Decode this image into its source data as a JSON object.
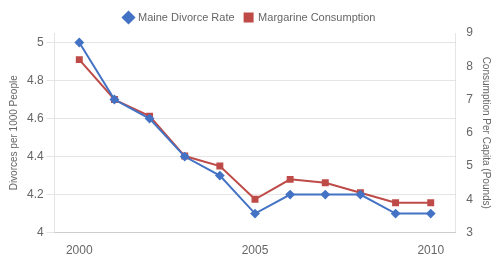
{
  "chart_data": {
    "type": "line",
    "x": [
      2000,
      2001,
      2002,
      2003,
      2004,
      2005,
      2006,
      2007,
      2008,
      2009,
      2010
    ],
    "series": [
      {
        "name": "Maine Divorce Rate",
        "color": "#4472C4",
        "marker": "diamond",
        "values": [
          5.0,
          4.7,
          4.6,
          4.4,
          4.3,
          4.1,
          4.2,
          4.2,
          4.2,
          4.1,
          4.1
        ]
      },
      {
        "name": "Margarine Consumption",
        "color": "#BE4B48",
        "marker": "square",
        "axis": "y2",
        "values": [
          8.2,
          7.0,
          6.5,
          5.3,
          5.0,
          4.0,
          4.6,
          4.5,
          4.2,
          3.9,
          3.9
        ]
      }
    ],
    "xlim": [
      1999.3,
      2010.7
    ],
    "xticks": [
      2000,
      2005,
      2010
    ],
    "ylim": [
      4.0,
      5.05
    ],
    "yticks": [
      4,
      4.2,
      4.4,
      4.6,
      4.8,
      5
    ],
    "y2lim": [
      3.0,
      9.0
    ],
    "y2ticks": [
      3,
      4,
      5,
      6,
      7,
      8,
      9
    ],
    "ylabel": "Divorces per 1000 People",
    "y2label": "Consumption Per Capita (Pounds)",
    "grid": "y",
    "legend": "top"
  }
}
